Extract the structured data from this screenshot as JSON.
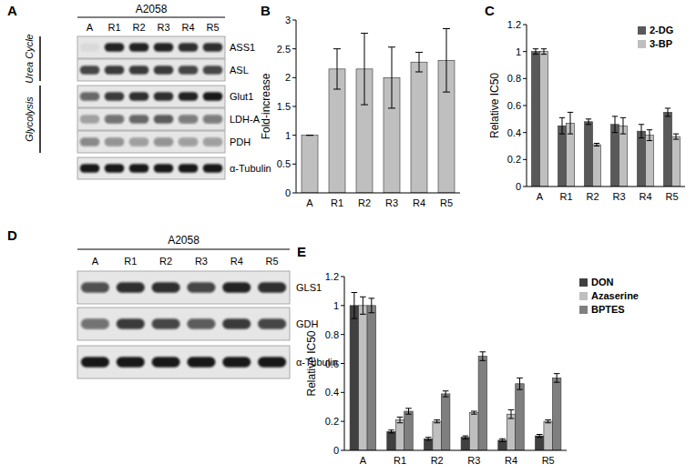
{
  "panel_labels": [
    "A",
    "B",
    "C",
    "D",
    "E"
  ],
  "blots": [
    {
      "cell_line": "A2058",
      "lanes": [
        "A",
        "R1",
        "R2",
        "R3",
        "R4",
        "R5"
      ],
      "groups": [
        {
          "label": "Urea Cycle",
          "rows": [
            {
              "label": "ASS1",
              "intensity": [
                0.05,
                0.9,
                0.9,
                0.9,
                0.85,
                0.85
              ]
            },
            {
              "label": "ASL",
              "intensity": [
                0.75,
                0.8,
                0.8,
                0.8,
                0.75,
                0.75
              ]
            }
          ]
        },
        {
          "label": "Glycolysis",
          "rows": [
            {
              "label": "Glut1",
              "intensity": [
                0.6,
                0.8,
                0.85,
                0.85,
                0.9,
                0.95
              ]
            },
            {
              "label": "LDH-A",
              "intensity": [
                0.3,
                0.55,
                0.6,
                0.65,
                0.5,
                0.5
              ]
            },
            {
              "label": "PDH",
              "intensity": [
                0.45,
                0.4,
                0.35,
                0.4,
                0.35,
                0.35
              ]
            }
          ]
        }
      ],
      "loading_control": {
        "label": "α-Tubulin",
        "intensity": [
          0.95,
          0.95,
          0.95,
          0.95,
          0.95,
          0.95
        ]
      }
    },
    {
      "cell_line": "A2058",
      "lanes": [
        "A",
        "R1",
        "R2",
        "R3",
        "R4",
        "R5"
      ],
      "rows": [
        {
          "label": "GLS1",
          "intensity": [
            0.7,
            0.85,
            0.85,
            0.75,
            0.9,
            0.85
          ]
        },
        {
          "label": "GDH",
          "intensity": [
            0.55,
            0.8,
            0.75,
            0.65,
            0.8,
            0.75
          ]
        }
      ],
      "loading_control": {
        "label": "α-Tubulin",
        "intensity": [
          0.95,
          0.95,
          0.95,
          0.95,
          0.95,
          0.95
        ]
      }
    }
  ],
  "chart_data": [
    {
      "type": "bar",
      "y_label": "Fold-increase",
      "categories": [
        "A",
        "R1",
        "R2",
        "R3",
        "R4",
        "R5"
      ],
      "values": [
        1,
        2.15,
        2.15,
        2.0,
        2.27,
        2.3
      ],
      "errors": [
        0,
        0.35,
        0.62,
        0.53,
        0.17,
        0.55
      ],
      "color": "#bfbfbf",
      "ylim": [
        0,
        3
      ],
      "yticks": [
        0,
        0.5,
        1,
        1.5,
        2,
        2.5,
        3
      ]
    },
    {
      "type": "bar",
      "y_label": "Relative IC50",
      "categories": [
        "A",
        "R1",
        "R2",
        "R3",
        "R4",
        "R5"
      ],
      "series": [
        {
          "name": "2-DG",
          "color": "#595959",
          "values": [
            1,
            0.45,
            0.48,
            0.46,
            0.41,
            0.55
          ],
          "errors": [
            0.02,
            0.06,
            0.02,
            0.06,
            0.05,
            0.03
          ]
        },
        {
          "name": "3-BP",
          "color": "#bfbfbf",
          "values": [
            1,
            0.47,
            0.31,
            0.45,
            0.38,
            0.37
          ],
          "errors": [
            0.02,
            0.08,
            0.01,
            0.06,
            0.04,
            0.02
          ]
        }
      ],
      "ylim": [
        0,
        1.2
      ],
      "yticks": [
        0,
        0.2,
        0.4,
        0.6,
        0.8,
        1,
        1.2
      ],
      "legend": "top-right"
    },
    {
      "type": "bar",
      "y_label": "Relative IC50",
      "categories": [
        "A",
        "R1",
        "R2",
        "R3",
        "R4",
        "R5"
      ],
      "series": [
        {
          "name": "DON",
          "color": "#404040",
          "values": [
            1,
            0.13,
            0.08,
            0.09,
            0.07,
            0.1
          ],
          "errors": [
            0.09,
            0.01,
            0.01,
            0.01,
            0.01,
            0.01
          ]
        },
        {
          "name": "Azaserine",
          "color": "#bfbfbf",
          "values": [
            1,
            0.21,
            0.2,
            0.26,
            0.25,
            0.2
          ],
          "errors": [
            0.06,
            0.02,
            0.01,
            0.01,
            0.03,
            0.01
          ]
        },
        {
          "name": "BPTES",
          "color": "#7f7f7f",
          "values": [
            1,
            0.27,
            0.39,
            0.65,
            0.46,
            0.5
          ],
          "errors": [
            0.05,
            0.02,
            0.02,
            0.03,
            0.04,
            0.03
          ]
        }
      ],
      "ylim": [
        0,
        1.2
      ],
      "yticks": [
        0,
        0.2,
        0.4,
        0.6,
        0.8,
        1,
        1.2
      ],
      "legend": "right"
    }
  ]
}
